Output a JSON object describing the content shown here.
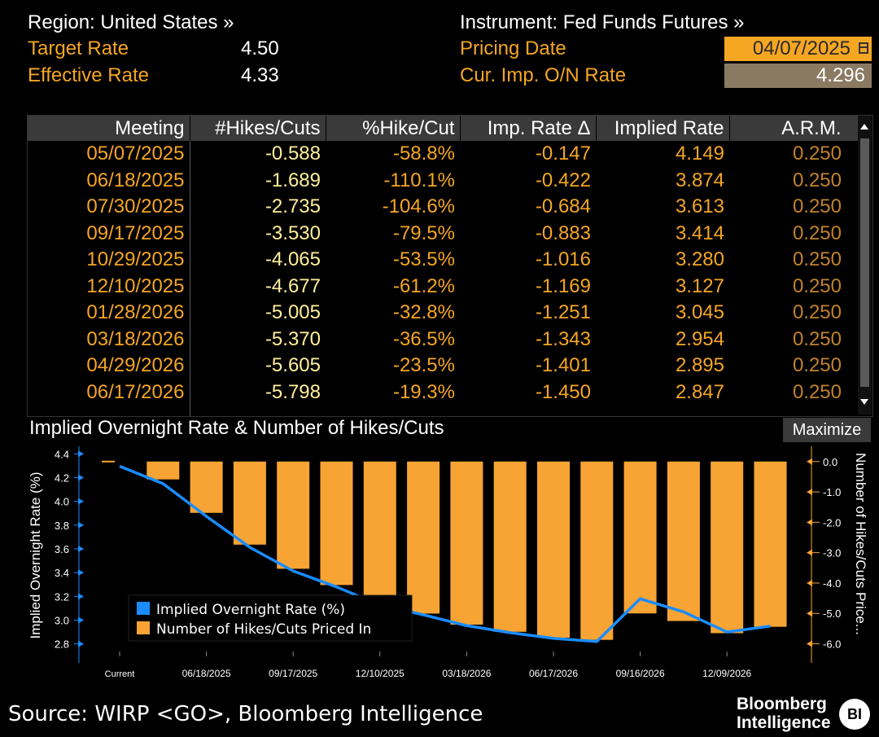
{
  "header": {
    "region_label": "Region: United States »",
    "instrument_label": "Instrument: Fed Funds Futures »",
    "target_rate_label": "Target Rate",
    "target_rate_value": "4.50",
    "effective_rate_label": "Effective Rate",
    "effective_rate_value": "4.33",
    "pricing_date_label": "Pricing Date",
    "pricing_date_value": "04/07/2025",
    "cur_imp_label": "Cur. Imp. O/N Rate",
    "cur_imp_value": "4.296"
  },
  "table": {
    "columns": [
      "Meeting",
      "#Hikes/Cuts",
      "%Hike/Cut",
      "Imp. Rate Δ",
      "Implied Rate",
      "A.R.M."
    ],
    "rows": [
      [
        "05/07/2025",
        "-0.588",
        "-58.8%",
        "-0.147",
        "4.149",
        "0.250"
      ],
      [
        "06/18/2025",
        "-1.689",
        "-110.1%",
        "-0.422",
        "3.874",
        "0.250"
      ],
      [
        "07/30/2025",
        "-2.735",
        "-104.6%",
        "-0.684",
        "3.613",
        "0.250"
      ],
      [
        "09/17/2025",
        "-3.530",
        "-79.5%",
        "-0.883",
        "3.414",
        "0.250"
      ],
      [
        "10/29/2025",
        "-4.065",
        "-53.5%",
        "-1.016",
        "3.280",
        "0.250"
      ],
      [
        "12/10/2025",
        "-4.677",
        "-61.2%",
        "-1.169",
        "3.127",
        "0.250"
      ],
      [
        "01/28/2026",
        "-5.005",
        "-32.8%",
        "-1.251",
        "3.045",
        "0.250"
      ],
      [
        "03/18/2026",
        "-5.370",
        "-36.5%",
        "-1.343",
        "2.954",
        "0.250"
      ],
      [
        "04/29/2026",
        "-5.605",
        "-23.5%",
        "-1.401",
        "2.895",
        "0.250"
      ],
      [
        "06/17/2026",
        "-5.798",
        "-19.3%",
        "-1.450",
        "2.847",
        "0.250"
      ]
    ]
  },
  "chart_panel": {
    "title": "Implied Overnight Rate & Number of Hikes/Cuts",
    "maximize_label": "Maximize"
  },
  "chart_data": {
    "type": "bar",
    "x_labels": [
      "Current",
      "06/18/2025",
      "09/17/2025",
      "12/10/2025",
      "03/18/2026",
      "06/17/2026",
      "09/16/2026",
      "12/09/2026"
    ],
    "ylabel_left": "Implied Overnight Rate (%)",
    "ylabel_right": "Number of Hikes/Cuts Price...",
    "left_ticks": [
      "4.4",
      "4.2",
      "4.0",
      "3.8",
      "3.6",
      "3.4",
      "3.2",
      "3.0",
      "2.8"
    ],
    "right_ticks": [
      "0.0",
      "-1.0",
      "-2.0",
      "-3.0",
      "-4.0",
      "-5.0",
      "-6.0"
    ],
    "ylim_left": [
      2.75,
      4.45
    ],
    "ylim_right": [
      -6.2,
      0.45
    ],
    "legend_position": "bottom-left",
    "series": [
      {
        "name": "Implied Overnight Rate (%)",
        "type": "line",
        "color": "#1a8cff",
        "values": [
          4.296,
          4.149,
          3.874,
          3.613,
          3.414,
          3.28,
          3.127,
          3.045,
          2.954,
          2.895,
          2.847,
          2.82,
          3.18,
          3.07,
          2.9,
          2.95
        ]
      },
      {
        "name": "Number of Hikes/Cuts Priced In",
        "type": "bar",
        "color": "#f7a434",
        "values": [
          0.0,
          -0.588,
          -1.689,
          -2.735,
          -3.53,
          -4.065,
          -4.677,
          -5.005,
          -5.37,
          -5.605,
          -5.798,
          -5.87,
          -5.0,
          -5.25,
          -5.65,
          -5.44
        ]
      }
    ]
  },
  "footer": {
    "source": "Source: WIRP <GO>, Bloomberg Intelligence",
    "brand_line1": "Bloomberg",
    "brand_line2": "Intelligence",
    "badge": "BI"
  }
}
